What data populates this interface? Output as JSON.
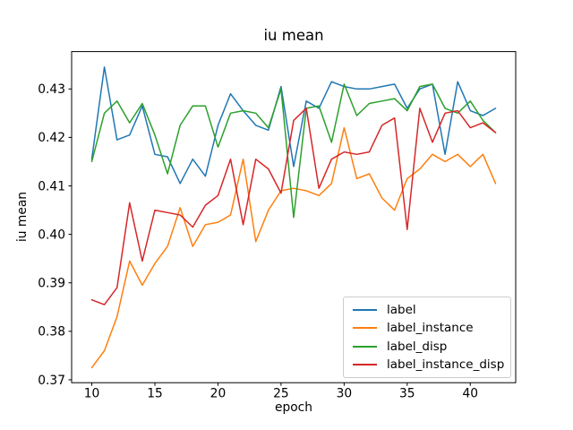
{
  "title": "iu mean",
  "chart_data": {
    "type": "line",
    "title": "iu mean",
    "xlabel": "epoch",
    "ylabel": "iu mean",
    "grid": false,
    "legend_position": "lower right",
    "background": "#ffffff",
    "xlim": [
      8.4,
      43.6
    ],
    "ylim": [
      0.3694,
      0.4377
    ],
    "xticks": [
      10,
      15,
      20,
      25,
      30,
      35,
      40
    ],
    "yticks": [
      0.37,
      0.38,
      0.39,
      0.4,
      0.41,
      0.42,
      0.43
    ],
    "ytick_labels": [
      "0.37",
      "0.38",
      "0.39",
      "0.40",
      "0.41",
      "0.42",
      "0.43"
    ],
    "x": [
      10,
      11,
      12,
      13,
      14,
      15,
      16,
      17,
      18,
      19,
      20,
      21,
      22,
      23,
      24,
      25,
      26,
      27,
      28,
      29,
      30,
      31,
      32,
      33,
      34,
      35,
      36,
      37,
      38,
      39,
      40,
      41,
      42
    ],
    "series": [
      {
        "name": "label",
        "color": "#1f77b4",
        "values": [
          0.4155,
          0.4345,
          0.4195,
          0.4205,
          0.4265,
          0.4165,
          0.416,
          0.4105,
          0.4155,
          0.412,
          0.4225,
          0.429,
          0.4255,
          0.4225,
          0.4215,
          0.4305,
          0.414,
          0.4275,
          0.426,
          0.4315,
          0.4305,
          0.43,
          0.43,
          0.4305,
          0.431,
          0.426,
          0.43,
          0.431,
          0.4165,
          0.4315,
          0.4255,
          0.4245,
          0.426
        ]
      },
      {
        "name": "label_instance",
        "color": "#ff7f0e",
        "values": [
          0.3725,
          0.376,
          0.383,
          0.3945,
          0.3895,
          0.394,
          0.3975,
          0.4055,
          0.3975,
          0.402,
          0.4025,
          0.404,
          0.4155,
          0.3985,
          0.405,
          0.409,
          0.4095,
          0.409,
          0.408,
          0.4105,
          0.422,
          0.4115,
          0.4125,
          0.4075,
          0.405,
          0.4115,
          0.4135,
          0.4165,
          0.415,
          0.4165,
          0.414,
          0.4165,
          0.4105
        ]
      },
      {
        "name": "label_disp",
        "color": "#2ca02c",
        "values": [
          0.415,
          0.425,
          0.4275,
          0.423,
          0.427,
          0.4205,
          0.4125,
          0.4225,
          0.4265,
          0.4265,
          0.418,
          0.425,
          0.4255,
          0.425,
          0.422,
          0.43,
          0.4035,
          0.426,
          0.4265,
          0.419,
          0.431,
          0.4245,
          0.427,
          0.4275,
          0.428,
          0.4255,
          0.4305,
          0.431,
          0.426,
          0.425,
          0.4275,
          0.4235,
          0.421
        ]
      },
      {
        "name": "label_instance_disp",
        "color": "#d62728",
        "values": [
          0.3865,
          0.3855,
          0.389,
          0.4065,
          0.3945,
          0.405,
          0.4045,
          0.404,
          0.4015,
          0.406,
          0.408,
          0.4155,
          0.402,
          0.4155,
          0.4135,
          0.4085,
          0.4235,
          0.426,
          0.4095,
          0.4155,
          0.417,
          0.4165,
          0.417,
          0.4225,
          0.424,
          0.401,
          0.426,
          0.419,
          0.425,
          0.4255,
          0.422,
          0.423,
          0.421
        ]
      }
    ]
  }
}
